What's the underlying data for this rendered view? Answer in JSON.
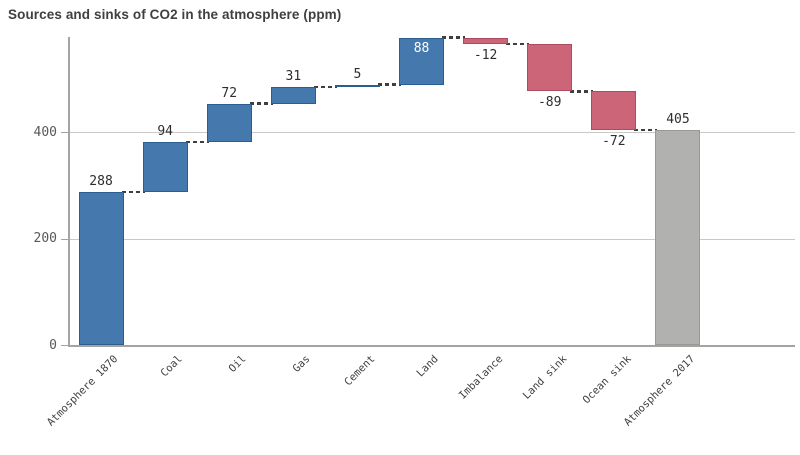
{
  "title": "Sources and sinks of CO2 in the atmosphere (ppm)",
  "chart_data": {
    "type": "bar",
    "subtype": "waterfall",
    "title": "Sources and sinks of CO2 in the atmosphere (ppm)",
    "categories": [
      "Atmosphere 1870",
      "Coal",
      "Oil",
      "Gas",
      "Cement",
      "Land",
      "Imbalance",
      "Land sink",
      "Ocean sink",
      "Atmosphere 2017"
    ],
    "values": [
      288,
      94,
      72,
      31,
      5,
      88,
      -12,
      -89,
      -72,
      405
    ],
    "bar_roles": [
      "start",
      "relative",
      "relative",
      "relative",
      "relative",
      "relative",
      "relative",
      "relative",
      "relative",
      "total"
    ],
    "data_labels": [
      "288",
      "94",
      "72",
      "31",
      "5",
      "88",
      "-12",
      "-89",
      "-72",
      "405"
    ],
    "cumulative": [
      288,
      382,
      454,
      485,
      490,
      578,
      566,
      477,
      405,
      405
    ],
    "xlabel": "",
    "ylabel": "",
    "yticks": [
      "0",
      "200",
      "400"
    ],
    "ytick_values": [
      0,
      200,
      400
    ],
    "ylim": [
      0,
      580
    ],
    "grid": true,
    "legend": false,
    "connector_style": "dashed",
    "colors": {
      "positive": "#4579ad",
      "positive_border": "#2c5d8f",
      "negative": "#cb6577",
      "negative_border": "#a94c60",
      "total": "#b1b1b0",
      "total_border": "#989896",
      "connector": "#3f3f3f",
      "grid": "#c9c9c9",
      "axis": "#a3a3a3",
      "label": "#2e2e2e",
      "inside_label": "#ffffff",
      "tick_label": "#595959",
      "category_label": "#404040",
      "title": "#404040"
    }
  }
}
